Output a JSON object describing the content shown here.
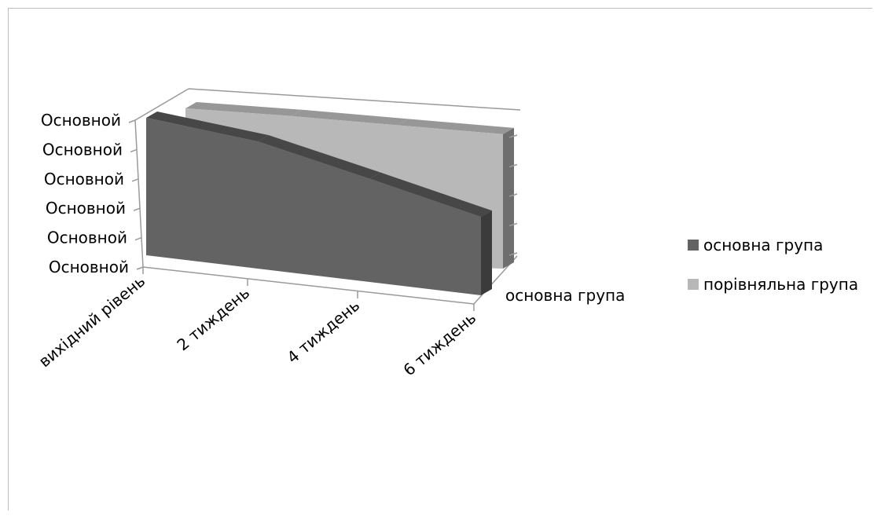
{
  "chart_data": {
    "type": "area",
    "style": "3d-area",
    "categories": [
      "вихідний рівень",
      "2 тиждень",
      "4 тиждень",
      "6 тиждень"
    ],
    "series": [
      {
        "name": "основна група",
        "values": [
          100,
          96,
          81,
          64
        ],
        "color": "#636363"
      },
      {
        "name": "порівняльна група",
        "values": [
          100,
          98,
          95,
          92
        ],
        "color": "#b8b8b8"
      }
    ],
    "y_tick_labels": [
      "Основной",
      "Основной",
      "Основной",
      "Основной",
      "Основной",
      "Основной"
    ],
    "depth_axis_label": "основна група",
    "ylim": [
      0,
      100
    ],
    "legend_position": "right",
    "grid": false
  }
}
